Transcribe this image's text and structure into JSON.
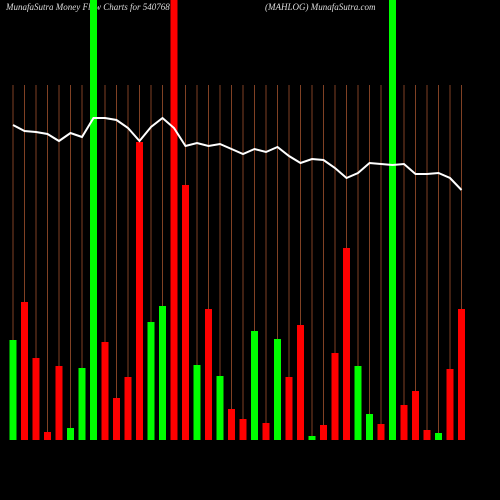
{
  "chart_data": {
    "type": "bar",
    "title": "MunafaSutra  Money Flow  Charts for 540768",
    "subtitle": "(MAHLOG) MunafaSutra.com",
    "categories": [
      null,
      null,
      null,
      null,
      null,
      null,
      null,
      null,
      null,
      null,
      null,
      null,
      null,
      null,
      null,
      null,
      null,
      null,
      null,
      null,
      null,
      null,
      null,
      null,
      null,
      null,
      null,
      null,
      null,
      null,
      null,
      null,
      null,
      null,
      null,
      null,
      null,
      null,
      null,
      null
    ],
    "values": [
      100,
      138,
      82,
      8,
      74,
      12,
      72,
      440,
      98,
      42,
      63,
      298,
      118,
      134,
      440,
      255,
      75,
      131,
      64,
      31,
      21,
      109,
      17,
      101,
      63,
      115,
      4,
      15,
      87,
      192,
      74,
      26,
      16,
      440,
      35,
      49,
      10,
      7,
      71,
      131
    ],
    "colors": [
      "#00ff00",
      "#ff0000",
      "#ff0000",
      "#ff0000",
      "#ff0000",
      "#00ff00",
      "#00ff00",
      "#00ff00",
      "#ff0000",
      "#ff0000",
      "#ff0000",
      "#ff0000",
      "#00ff00",
      "#00ff00",
      "#ff0000",
      "#ff0000",
      "#00ff00",
      "#ff0000",
      "#00ff00",
      "#ff0000",
      "#ff0000",
      "#00ff00",
      "#ff0000",
      "#00ff00",
      "#ff0000",
      "#ff0000",
      "#00ff00",
      "#ff0000",
      "#ff0000",
      "#ff0000",
      "#00ff00",
      "#00ff00",
      "#ff0000",
      "#00ff00",
      "#ff0000",
      "#ff0000",
      "#ff0000",
      "#00ff00",
      "#ff0000",
      "#ff0000"
    ],
    "line_values": [
      315,
      309,
      308,
      306,
      299,
      307,
      303,
      322,
      322,
      320,
      312,
      299,
      313,
      322,
      312,
      294,
      297,
      294,
      296,
      291,
      286,
      291,
      288,
      293,
      284,
      277,
      281,
      280,
      272,
      262,
      267,
      277,
      276,
      275,
      276,
      266,
      266,
      267,
      262,
      250
    ],
    "line_color": "#ffffff",
    "ylim": [
      0,
      440
    ]
  }
}
